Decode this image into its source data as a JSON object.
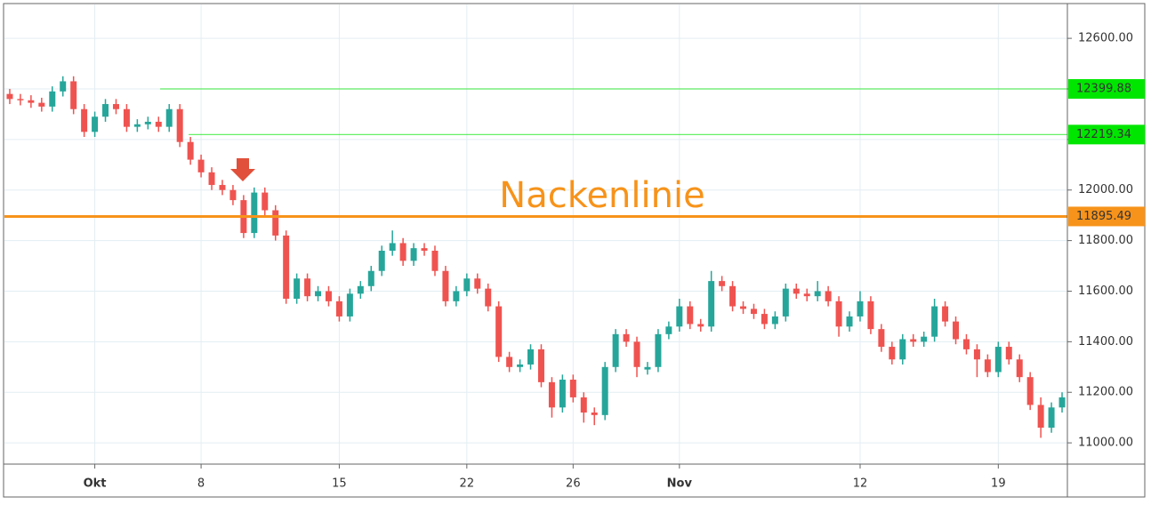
{
  "chart_data": {
    "type": "candlestick",
    "annotation": "Nackenlinie",
    "categories": [
      null,
      null,
      null,
      null,
      null,
      null,
      null,
      null,
      "Okt",
      null,
      null,
      null,
      null,
      null,
      null,
      null,
      null,
      null,
      "8",
      null,
      null,
      null,
      null,
      null,
      null,
      null,
      null,
      null,
      null,
      null,
      null,
      "15",
      null,
      null,
      null,
      null,
      null,
      null,
      null,
      null,
      null,
      null,
      null,
      "22",
      null,
      null,
      null,
      null,
      null,
      null,
      null,
      null,
      null,
      "26",
      null,
      null,
      null,
      null,
      null,
      null,
      null,
      null,
      null,
      "Nov",
      null,
      null,
      null,
      null,
      null,
      null,
      null,
      null,
      null,
      null,
      null,
      null,
      null,
      null,
      null,
      null,
      "12",
      null,
      null,
      null,
      null,
      null,
      null,
      null,
      null,
      null,
      null,
      null,
      null,
      "19",
      null,
      null,
      null,
      null,
      null,
      null
    ],
    "open": [
      12380,
      12360,
      12355,
      12345,
      12330,
      12390,
      12430,
      12320,
      12230,
      12290,
      12340,
      12320,
      12250,
      12260,
      12270,
      12250,
      12320,
      12190,
      12120,
      12070,
      12020,
      12000,
      11960,
      11830,
      11990,
      11920,
      11820,
      11570,
      11650,
      11580,
      11600,
      11560,
      11500,
      11590,
      11620,
      11680,
      11760,
      11790,
      11720,
      11770,
      11760,
      11680,
      11560,
      11600,
      11650,
      11610,
      11540,
      11340,
      11300,
      11310,
      11370,
      11240,
      11140,
      11250,
      11180,
      11120,
      11110,
      11300,
      11430,
      11400,
      11290,
      11300,
      11430,
      11460,
      11540,
      11470,
      11460,
      11640,
      11620,
      11540,
      11530,
      11510,
      11470,
      11500,
      11610,
      11590,
      11580,
      11600,
      11560,
      11460,
      11500,
      11560,
      11450,
      11380,
      11330,
      11410,
      11400,
      11420,
      11540,
      11480,
      11410,
      11370,
      11330,
      11280,
      11380,
      11330,
      11260,
      11150,
      11060,
      11140
    ],
    "high": [
      12400,
      12380,
      12375,
      12365,
      12410,
      12450,
      12450,
      12340,
      12310,
      12360,
      12360,
      12340,
      12280,
      12290,
      12290,
      12340,
      12340,
      12210,
      12140,
      12090,
      12040,
      12020,
      11980,
      12010,
      12010,
      11940,
      11840,
      11670,
      11670,
      11620,
      11620,
      11580,
      11610,
      11640,
      11700,
      11780,
      11840,
      11810,
      11790,
      11790,
      11780,
      11700,
      11620,
      11670,
      11670,
      11630,
      11560,
      11360,
      11330,
      11390,
      11390,
      11260,
      11270,
      11270,
      11200,
      11140,
      11320,
      11450,
      11450,
      11420,
      11320,
      11450,
      11480,
      11570,
      11560,
      11490,
      11680,
      11660,
      11640,
      11560,
      11550,
      11530,
      11520,
      11630,
      11630,
      11610,
      11640,
      11620,
      11580,
      11520,
      11600,
      11580,
      11470,
      11400,
      11430,
      11430,
      11440,
      11570,
      11560,
      11500,
      11430,
      11390,
      11350,
      11400,
      11400,
      11350,
      11280,
      11180,
      11160,
      11200
    ],
    "low": [
      12340,
      12335,
      12325,
      12310,
      12310,
      12370,
      12300,
      12210,
      12210,
      12270,
      12300,
      12230,
      12230,
      12240,
      12230,
      12230,
      12170,
      12100,
      12050,
      12000,
      11980,
      11940,
      11810,
      11810,
      11900,
      11800,
      11550,
      11550,
      11560,
      11560,
      11540,
      11480,
      11480,
      11570,
      11600,
      11660,
      11740,
      11700,
      11700,
      11740,
      11660,
      11540,
      11540,
      11580,
      11590,
      11520,
      11320,
      11280,
      11280,
      11290,
      11220,
      11100,
      11120,
      11160,
      11080,
      11070,
      11090,
      11280,
      11380,
      11260,
      11270,
      11280,
      11410,
      11440,
      11450,
      11440,
      11440,
      11600,
      11520,
      11510,
      11490,
      11450,
      11450,
      11480,
      11570,
      11560,
      11560,
      11540,
      11420,
      11440,
      11480,
      11430,
      11360,
      11310,
      11310,
      11380,
      11380,
      11400,
      11460,
      11390,
      11350,
      11260,
      11260,
      11260,
      11310,
      11240,
      11130,
      11020,
      11040,
      11120
    ],
    "close": [
      12360,
      12355,
      12345,
      12330,
      12390,
      12430,
      12320,
      12230,
      12290,
      12340,
      12320,
      12250,
      12260,
      12270,
      12250,
      12320,
      12190,
      12120,
      12070,
      12020,
      12000,
      11960,
      11830,
      11990,
      11920,
      11820,
      11570,
      11650,
      11580,
      11600,
      11560,
      11500,
      11590,
      11620,
      11680,
      11760,
      11790,
      11720,
      11770,
      11760,
      11680,
      11560,
      11600,
      11650,
      11610,
      11540,
      11340,
      11300,
      11310,
      11370,
      11240,
      11140,
      11250,
      11180,
      11120,
      11110,
      11300,
      11430,
      11400,
      11300,
      11300,
      11430,
      11460,
      11540,
      11470,
      11460,
      11640,
      11620,
      11540,
      11530,
      11510,
      11470,
      11500,
      11610,
      11590,
      11580,
      11600,
      11560,
      11460,
      11500,
      11560,
      11450,
      11380,
      11330,
      11410,
      11400,
      11420,
      11540,
      11480,
      11410,
      11370,
      11330,
      11280,
      11380,
      11330,
      11260,
      11150,
      11060,
      11140,
      11180
    ],
    "up_color": "#26a69a",
    "down_color": "#ef5350",
    "ylim": [
      10916,
      12734
    ],
    "yticks": [
      {
        "value": 11000,
        "label": "11000.00"
      },
      {
        "value": 11200,
        "label": "11200.00"
      },
      {
        "value": 11400,
        "label": "11400.00"
      },
      {
        "value": 11600,
        "label": "11600.00"
      },
      {
        "value": 11800,
        "label": "11800.00"
      },
      {
        "value": 12000,
        "label": "12000.00"
      },
      {
        "value": 12200,
        "label": "12200.00"
      },
      {
        "value": 12400,
        "label": "12400.00"
      },
      {
        "value": 12600,
        "label": "12600.00"
      }
    ],
    "hlines": [
      {
        "value": 12399.88,
        "color": "#00e600",
        "text_color": "#000000"
      },
      {
        "value": 12219.34,
        "color": "#00e600",
        "text_color": "#000000"
      },
      {
        "value": 11895.49,
        "color": "#f7931a",
        "text_color": "#ffffff"
      }
    ],
    "grid": true
  }
}
